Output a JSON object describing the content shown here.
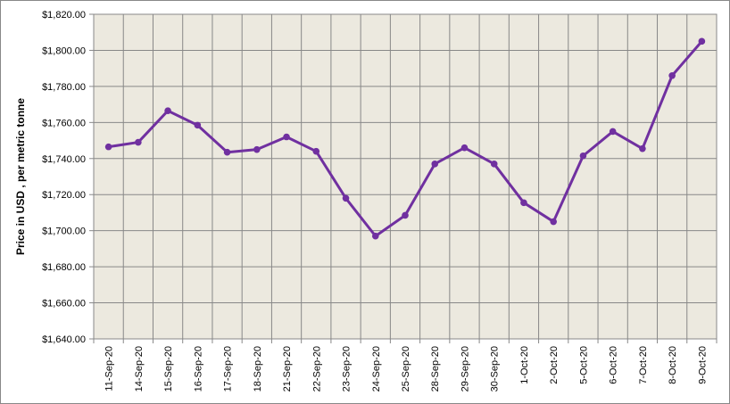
{
  "chart_data": {
    "type": "line",
    "y_label": "Price in USD , per metric tonne",
    "categories": [
      "11-Sep-20",
      "14-Sep-20",
      "15-Sep-20",
      "16-Sep-20",
      "17-Sep-20",
      "18-Sep-20",
      "21-Sep-20",
      "22-Sep-20",
      "23-Sep-20",
      "24-Sep-20",
      "25-Sep-20",
      "28-Sep-20",
      "29-Sep-20",
      "30-Sep-20",
      "1-Oct-20",
      "2-Oct-20",
      "5-Oct-20",
      "6-Oct-20",
      "7-Oct-20",
      "8-Oct-20",
      "9-Oct-20"
    ],
    "values": [
      1746.5,
      1749,
      1766.5,
      1758.5,
      1743.5,
      1745,
      1752,
      1744,
      1718,
      1697,
      1708.5,
      1737,
      1746,
      1737,
      1715.5,
      1705,
      1741.5,
      1755,
      1745.5,
      1786,
      1805
    ],
    "color": "#7030a0",
    "ylim": [
      1640,
      1820
    ],
    "yticks": [
      {
        "value": 1640,
        "label": "$1,640.00"
      },
      {
        "value": 1660,
        "label": "$1,660.00"
      },
      {
        "value": 1680,
        "label": "$1,680.00"
      },
      {
        "value": 1700,
        "label": "$1,700.00"
      },
      {
        "value": 1720,
        "label": "$1,720.00"
      },
      {
        "value": 1740,
        "label": "$1,740.00"
      },
      {
        "value": 1760,
        "label": "$1,760.00"
      },
      {
        "value": 1780,
        "label": "$1,780.00"
      },
      {
        "value": 1800,
        "label": "$1,800.00"
      },
      {
        "value": 1820,
        "label": "$1,820.00"
      }
    ],
    "grid": true
  }
}
